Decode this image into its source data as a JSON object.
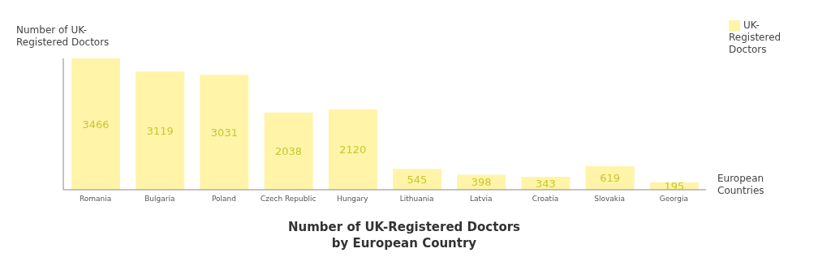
{
  "chart_data": {
    "type": "bar",
    "title": "Number of UK-Registered Doctors by European Country",
    "xlabel": "European Countries",
    "ylabel": "Number of UK-Registered Doctors",
    "categories": [
      "Romania",
      "Bulgaria",
      "Poland",
      "Czech Republic",
      "Hungary",
      "Lithuania",
      "Latvia",
      "Croatia",
      "Slovakia",
      "Georgia"
    ],
    "series": [
      {
        "name": "UK-Registered Doctors",
        "color": "#fff4a8",
        "values": [
          3466,
          3119,
          3031,
          2038,
          2120,
          545,
          398,
          343,
          619,
          195
        ]
      }
    ],
    "data_labels": true,
    "legend": "top right",
    "tick_labels": "x",
    "grid": false
  }
}
